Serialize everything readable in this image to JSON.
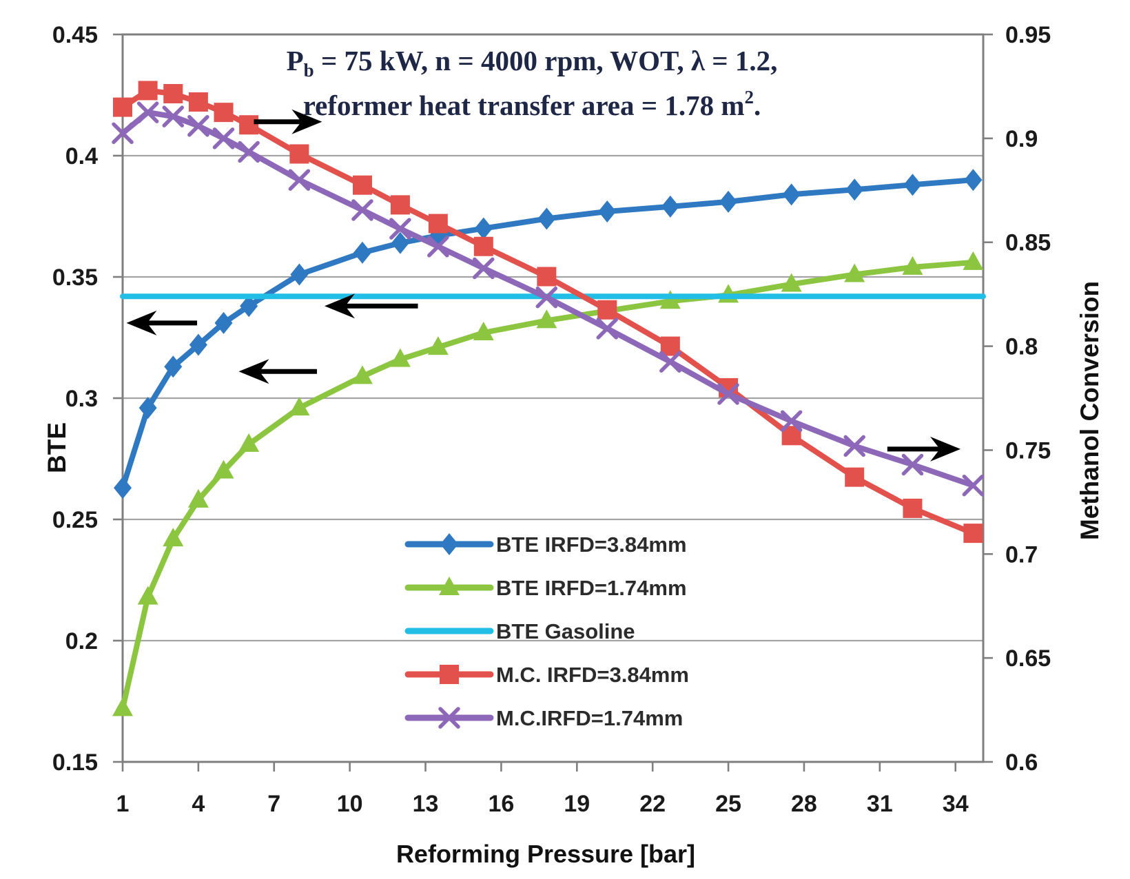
{
  "title": {
    "line1": {
      "pre": "P",
      "sub": "b",
      "rest": " = 75 kW, n = 4000 rpm, WOT, λ = 1.2,"
    },
    "line2": {
      "pre": "reformer heat transfer area = 1.78 m",
      "sup": "2",
      "rest": "."
    },
    "color": "#1f2746"
  },
  "chart_data": {
    "type": "line",
    "title": "Pb = 75 kW, n = 4000 rpm, WOT, λ = 1.2, reformer heat transfer area = 1.78 m2.",
    "xlabel": "Reforming Pressure [bar]",
    "xlim": [
      1,
      35.1
    ],
    "x_ticks": [
      1,
      4,
      7,
      10,
      13,
      16,
      19,
      22,
      25,
      28,
      31,
      34
    ],
    "x_tick_labels": [
      "1",
      "4",
      "7",
      "10",
      "13",
      "16",
      "19",
      "22",
      "25",
      "28",
      "31",
      "34"
    ],
    "grid": "horizontal-only",
    "legend_position": "inside-bottom-center",
    "left_axis": {
      "label": "BTE",
      "lim": [
        0.15,
        0.45
      ],
      "ticks": [
        0.45,
        0.4,
        0.35,
        0.3,
        0.25,
        0.2,
        0.15
      ],
      "tick_labels": [
        "0.45",
        "0.4",
        "0.35",
        "0.3",
        "0.25",
        "0.2",
        "0.15"
      ]
    },
    "right_axis": {
      "label": "Methanol Conversion",
      "lim": [
        0.6,
        0.95
      ],
      "ticks": [
        0.95,
        0.9,
        0.85,
        0.8,
        0.75,
        0.7,
        0.65,
        0.6
      ],
      "tick_labels": [
        "0.95",
        "0.9",
        "0.85",
        "0.8",
        "0.75",
        "0.7",
        "0.65",
        "0.6"
      ]
    },
    "x": [
      1,
      2,
      3,
      4,
      5,
      6,
      8,
      10.5,
      12,
      13.5,
      15.3,
      17.8,
      20.2,
      22.7,
      25,
      27.5,
      30,
      32.3,
      34.7
    ],
    "series": [
      {
        "name": "BTE IRFD=3.84mm",
        "axis": "left",
        "color": "#2E79C1",
        "marker": "diamond",
        "values": [
          0.263,
          0.296,
          0.313,
          0.322,
          0.331,
          0.338,
          0.351,
          0.36,
          0.364,
          0.367,
          0.37,
          0.374,
          0.377,
          0.379,
          0.381,
          0.384,
          0.386,
          0.388,
          0.39
        ]
      },
      {
        "name": "BTE IRFD=1.74mm",
        "axis": "left",
        "color": "#8CC540",
        "marker": "triangle",
        "values": [
          0.172,
          0.218,
          0.242,
          0.258,
          0.27,
          0.281,
          0.296,
          0.309,
          0.316,
          0.321,
          0.327,
          0.332,
          0.336,
          0.34,
          0.3425,
          0.347,
          0.351,
          0.354,
          0.356
        ]
      },
      {
        "name": "BTE Gasoline",
        "axis": "left",
        "color": "#22BEE5",
        "marker": "none",
        "constant": 0.342
      },
      {
        "name": "M.C. IRFD=3.84mm",
        "axis": "right",
        "color": "#E2514C",
        "marker": "square",
        "values": [
          0.915,
          0.923,
          0.9215,
          0.9175,
          0.9125,
          0.9065,
          0.8925,
          0.8775,
          0.868,
          0.859,
          0.848,
          0.8335,
          0.8175,
          0.8,
          0.78,
          0.757,
          0.737,
          0.722,
          0.71
        ]
      },
      {
        "name": "M.C.IRFD=1.74mm",
        "axis": "right",
        "color": "#8D68B8",
        "marker": "x",
        "values": [
          0.9025,
          0.9125,
          0.9105,
          0.906,
          0.9,
          0.8935,
          0.88,
          0.8655,
          0.8565,
          0.848,
          0.8375,
          0.8235,
          0.8085,
          0.7925,
          0.777,
          0.764,
          0.752,
          0.743,
          0.733
        ]
      }
    ],
    "annotations": {
      "arrows": [
        {
          "name": "arrow-left-to-bte-axis-1",
          "axis": "left",
          "y": 0.331,
          "tail_x": 3.95,
          "tip_x": 1.15
        },
        {
          "name": "arrow-left-to-bte-axis-2",
          "axis": "left",
          "y": 0.311,
          "tail_x": 8.7,
          "tip_x": 5.6
        },
        {
          "name": "arrow-left-to-bte-axis-3",
          "axis": "left",
          "y": 0.338,
          "tail_x": 12.7,
          "tip_x": 9.0
        },
        {
          "name": "arrow-right-to-mc-axis-1",
          "axis": "right",
          "y": 0.908,
          "tail_x": 6.2,
          "tip_x": 8.9
        },
        {
          "name": "arrow-right-to-mc-axis-2",
          "axis": "right",
          "y": 0.7505,
          "tail_x": 31.3,
          "tip_x": 34.2
        }
      ]
    },
    "style": {
      "grid_color": "#A3A3A3",
      "frame_color": "#7F7F7F",
      "arrow_color": "#000000"
    }
  }
}
